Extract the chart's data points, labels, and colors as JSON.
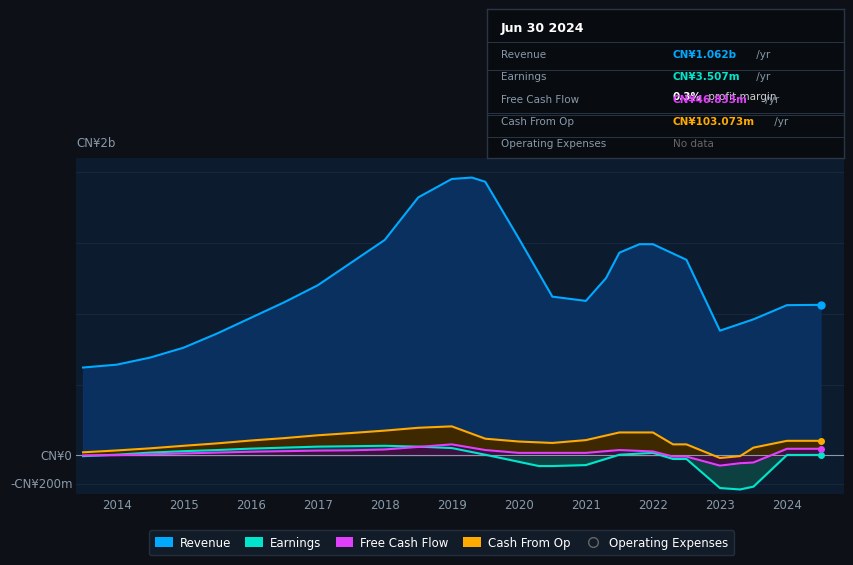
{
  "background_color": "#0d1117",
  "plot_bg_color": "#0d1b2e",
  "ylabel_top": "CN¥2b",
  "ylabel_bottom": "-CN¥200m",
  "y_zero_label": "CN¥0",
  "x_ticks": [
    2014,
    2015,
    2016,
    2017,
    2018,
    2019,
    2020,
    2021,
    2022,
    2023,
    2024
  ],
  "ylim": [
    -270,
    2100
  ],
  "xlim": [
    2013.4,
    2024.85
  ],
  "revenue_x": [
    2013.5,
    2014.0,
    2014.5,
    2015.0,
    2015.5,
    2016.0,
    2016.5,
    2017.0,
    2017.5,
    2018.0,
    2018.5,
    2019.0,
    2019.3,
    2019.5,
    2020.0,
    2020.5,
    2021.0,
    2021.3,
    2021.5,
    2021.8,
    2022.0,
    2022.5,
    2023.0,
    2023.5,
    2024.0,
    2024.5
  ],
  "revenue_y": [
    620,
    640,
    690,
    760,
    860,
    970,
    1080,
    1200,
    1360,
    1520,
    1820,
    1950,
    1960,
    1930,
    1530,
    1120,
    1090,
    1250,
    1430,
    1490,
    1490,
    1380,
    880,
    960,
    1060,
    1062
  ],
  "earnings_x": [
    2013.5,
    2014.0,
    2014.5,
    2015.0,
    2015.5,
    2016.0,
    2016.5,
    2017.0,
    2017.5,
    2018.0,
    2018.5,
    2019.0,
    2019.5,
    2020.0,
    2020.3,
    2020.5,
    2021.0,
    2021.5,
    2022.0,
    2022.3,
    2022.5,
    2023.0,
    2023.3,
    2023.5,
    2024.0,
    2024.5
  ],
  "earnings_y": [
    -5,
    5,
    20,
    30,
    38,
    48,
    55,
    62,
    65,
    68,
    62,
    52,
    5,
    -45,
    -75,
    -75,
    -68,
    5,
    18,
    -25,
    -25,
    -230,
    -240,
    -220,
    3.5,
    3.5
  ],
  "fcf_x": [
    2013.5,
    2014.0,
    2014.5,
    2015.0,
    2015.5,
    2016.0,
    2016.5,
    2017.0,
    2017.5,
    2018.0,
    2018.5,
    2019.0,
    2019.5,
    2020.0,
    2020.5,
    2021.0,
    2021.5,
    2022.0,
    2022.3,
    2022.5,
    2023.0,
    2023.3,
    2023.5,
    2024.0,
    2024.5
  ],
  "fcf_y": [
    0,
    2,
    8,
    14,
    20,
    26,
    30,
    34,
    36,
    42,
    60,
    78,
    38,
    18,
    18,
    18,
    38,
    28,
    -8,
    -8,
    -72,
    -55,
    -50,
    46.8,
    46.8
  ],
  "cashfromop_x": [
    2013.5,
    2014.0,
    2014.5,
    2015.0,
    2015.5,
    2016.0,
    2016.5,
    2017.0,
    2017.5,
    2018.0,
    2018.5,
    2019.0,
    2019.5,
    2020.0,
    2020.5,
    2021.0,
    2021.5,
    2022.0,
    2022.3,
    2022.5,
    2023.0,
    2023.3,
    2023.5,
    2024.0,
    2024.5
  ],
  "cashfromop_y": [
    22,
    35,
    50,
    68,
    85,
    105,
    122,
    142,
    158,
    175,
    195,
    205,
    118,
    98,
    88,
    108,
    162,
    162,
    78,
    78,
    -18,
    -5,
    55,
    103,
    103
  ],
  "revenue_color": "#00aaff",
  "revenue_fill": "#0a3060",
  "earnings_color": "#00e5cc",
  "earnings_fill": "#0d4040",
  "fcf_color": "#e040fb",
  "fcf_fill": "#3d1040",
  "cashfromop_color": "#ffaa00",
  "cashfromop_fill": "#3d2800",
  "grid_color": "#1a2e48",
  "legend_items": [
    "Revenue",
    "Earnings",
    "Free Cash Flow",
    "Cash From Op",
    "Operating Expenses"
  ],
  "legend_colors": [
    "#00aaff",
    "#00e5cc",
    "#e040fb",
    "#ffaa00",
    "#666666"
  ],
  "legend_bg": "#141e2d",
  "tooltip_title": "Jun 30 2024",
  "tooltip_rows": [
    {
      "label": "Revenue",
      "value": "CN¥1.062b /yr",
      "color": "#00aaff",
      "subtext": null
    },
    {
      "label": "Earnings",
      "value": "CN¥3.507m /yr",
      "color": "#00e5cc",
      "subtext": "0.3% profit margin"
    },
    {
      "label": "Free Cash Flow",
      "value": "CN¥46.833m /yr",
      "color": "#e040fb",
      "subtext": null
    },
    {
      "label": "Cash From Op",
      "value": "CN¥103.073m /yr",
      "color": "#ffaa00",
      "subtext": null
    },
    {
      "label": "Operating Expenses",
      "value": "No data",
      "color": "#666666",
      "subtext": null
    }
  ]
}
